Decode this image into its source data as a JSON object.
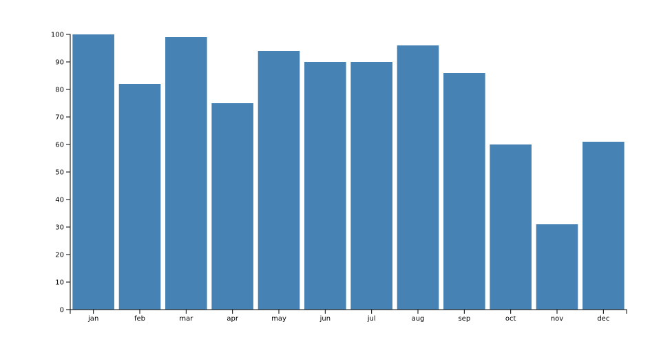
{
  "chart_data": {
    "type": "bar",
    "categories": [
      "jan",
      "feb",
      "mar",
      "apr",
      "may",
      "jun",
      "jul",
      "aug",
      "sep",
      "oct",
      "nov",
      "dec"
    ],
    "values": [
      100,
      82,
      99,
      75,
      94,
      90,
      90,
      96,
      86,
      60,
      31,
      61
    ],
    "color": "#4682b4",
    "ylim": [
      0,
      100
    ],
    "yticks": [
      0,
      10,
      20,
      30,
      40,
      50,
      60,
      70,
      80,
      90,
      100
    ],
    "grid": false
  }
}
